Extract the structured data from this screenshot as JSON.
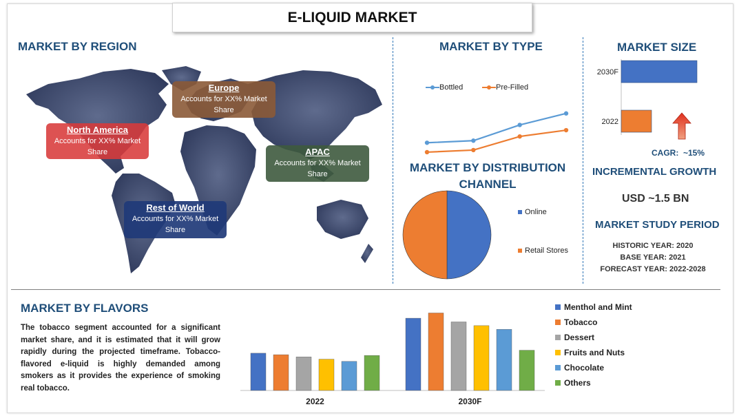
{
  "title": "E-LIQUID MARKET",
  "sections": {
    "region": "MARKET BY REGION",
    "type": "MARKET BY TYPE",
    "distribution": "MARKET BY DISTRIBUTION CHANNEL",
    "size": "MARKET SIZE",
    "flavors": "MARKET BY FLAVORS"
  },
  "regions": [
    {
      "name": "North America",
      "text": "Accounts for XX% Market Share",
      "color": "#d83a3a"
    },
    {
      "name": "Europe",
      "text": "Accounts for XX% Market Share",
      "color": "#8b5a37"
    },
    {
      "name": "APAC",
      "text": "Accounts for XX% Market Share",
      "color": "#3e5a3e"
    },
    {
      "name": "Rest of World",
      "text": "Accounts for XX% Market Share",
      "color": "#1f3a78"
    }
  ],
  "market_size": {
    "cagr_label": "CAGR:",
    "cagr_value": "~15%",
    "incremental_title": "INCREMENTAL GROWTH",
    "incremental_value": "USD ~1.5 BN",
    "study_title": "MARKET STUDY PERIOD",
    "historic": "HISTORIC YEAR: 2020",
    "base": "BASE YEAR: 2021",
    "forecast": "FORECAST YEAR: 2022-2028"
  },
  "flavors_text": "The tobacco segment accounted for a significant market share, and it is estimated that it will grow rapidly during the projected timeframe. Tobacco-flavored e-liquid is highly demanded among smokers as it provides the experience of smoking real tobacco.",
  "icons": {
    "growth": "up-arrow-icon",
    "map": "world-map"
  },
  "chart_data": [
    {
      "type": "line",
      "title": "MARKET BY TYPE",
      "x": [
        1,
        2,
        3,
        4
      ],
      "series": [
        {
          "name": "Bottled",
          "color": "#5b9bd5",
          "values": [
            1.1,
            1.3,
            2.8,
            3.9
          ]
        },
        {
          "name": "Pre-Filled",
          "color": "#ed7d31",
          "values": [
            0.2,
            0.4,
            1.7,
            2.3
          ]
        }
      ],
      "ylim": [
        0,
        5
      ],
      "legend": "top",
      "grid": false
    },
    {
      "type": "pie",
      "title": "MARKET BY DISTRIBUTION CHANNEL",
      "labels": [
        "Online",
        "Retail Stores"
      ],
      "values": [
        50,
        50
      ],
      "colors": [
        "#4472c4",
        "#ed7d31"
      ],
      "legend": "right"
    },
    {
      "type": "bar",
      "title": "MARKET SIZE",
      "orientation": "horizontal",
      "categories": [
        "2030F",
        "2022"
      ],
      "values": [
        100,
        40
      ],
      "colors": [
        "#4472c4",
        "#ed7d31"
      ],
      "xlim": [
        0,
        100
      ]
    },
    {
      "type": "bar",
      "title": "MARKET BY FLAVORS",
      "categories": [
        "2022",
        "2030F"
      ],
      "series": [
        {
          "name": "Menthol and Mint",
          "color": "#4472c4",
          "values": [
            50,
            97
          ]
        },
        {
          "name": "Tobacco",
          "color": "#ed7d31",
          "values": [
            48,
            104
          ]
        },
        {
          "name": "Dessert",
          "color": "#a5a5a5",
          "values": [
            45,
            92
          ]
        },
        {
          "name": "Fruits and Nuts",
          "color": "#ffc000",
          "values": [
            42,
            87
          ]
        },
        {
          "name": "Chocolate",
          "color": "#5b9bd5",
          "values": [
            39,
            82
          ]
        },
        {
          "name": "Others",
          "color": "#70ad47",
          "values": [
            47,
            54
          ]
        }
      ],
      "ylim": [
        0,
        110
      ],
      "legend": "right",
      "grid": false
    }
  ]
}
